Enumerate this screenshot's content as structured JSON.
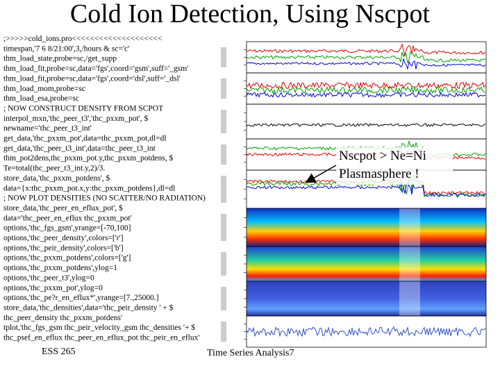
{
  "title": "Cold Ion Detection, Using Nscpot",
  "code": [
    ";>>>>>cold_ions.pro<<<<<<<<<<<<<<<<<<<<",
    "timespan,'7 6 8/21:00',3,/hours & sc='c'",
    "thm_load_state,probe=sc,/get_supp",
    "thm_load_fit,probe=sc,data='fgs',coord='gsm',suff='_gsm'",
    "thm_load_fit,probe=sc,data='fgs',coord='dsl',suff='_dsl'",
    "thm_load_mom,probe=sc",
    "thm_load_esa,probe=sc",
    "; NOW CONSTRUCT DENSITY FROM SCPOT",
    "interpol_mxn,'thc_peer_t3','thc_pxxm_pot', $",
    "  newname='thc_peer_t3_int'",
    "get_data,'thc_pxxm_pot',data=thc_pxxm_pot,dl=dl",
    "get_data,'thc_peer_t3_int',data=thc_peer_t3_int",
    "thm_pot2dens,thc_pxxm_pot.y,thc_pxxm_potdens, $",
    "  Te=total(thc_peer_t3_int.y,2)/3.",
    "store_data,'thc_pxxm_potdens', $",
    "  data={x:thc_pxxm_pot.x,y:thc_pxxm_potdens},dl=dl",
    "; NOW PLOT DENSITIES (NO SCATTER/NO RADIATION)",
    "store_data,'thc_peer_en_eflux_pot', $",
    "  data='thc_peer_en_eflux thc_pxxm_pot'",
    "options,'thc_fgs_gsm',yrange=[-70,100]",
    "options,'thc_peer_density',colors=['r']",
    "options,'thc_peir_density',colors=['b']",
    "options,'thc_pxxm_potdens',colors=['g']",
    "options,'thc_pxxm_potdens',ylog=1",
    "options,'thc_peer_t3',ylog=0",
    "options,'thc_pxxm_pot',ylog=0",
    "options,'thc_pe?r_en_eflux*',yrange=[7.,25000.]",
    "store_data,'thc_densities',data='thc_peir_density ' + $",
    "  thc_peer_density thc_pxxm_potdens'",
    "tplot,'thc_fgs_gsm thc_peir_velocity_gsm thc_densities '+ $",
    "  thc_psef_en_eflux thc_peer_en_eflux_pot thc_peir_en_eflux'"
  ],
  "annotation": [
    "Nscpot > Ne=Ni",
    "Plasmasphere !"
  ],
  "footer": {
    "left": "ESS 265",
    "center": "Time Series Analysis7"
  }
}
